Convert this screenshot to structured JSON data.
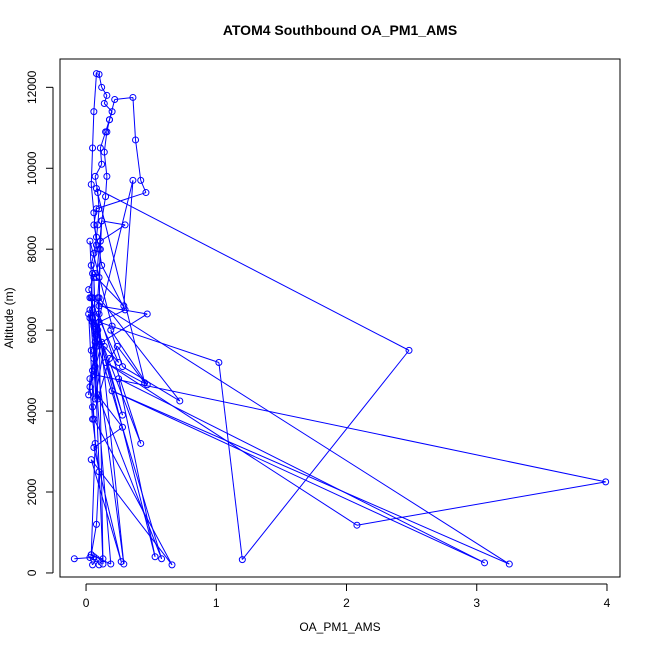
{
  "chart_data": {
    "type": "line",
    "title": "ATOM4 Southbound OA_PM1_AMS",
    "xlabel": "OA_PM1_AMS",
    "ylabel": "Altitude (m)",
    "xlim": [
      -0.2,
      4.1
    ],
    "ylim": [
      -100,
      12700
    ],
    "xticks": [
      {
        "value": 0,
        "label": "0"
      },
      {
        "value": 1,
        "label": "1"
      },
      {
        "value": 2,
        "label": "2"
      },
      {
        "value": 3,
        "label": "3"
      },
      {
        "value": 4,
        "label": "4"
      }
    ],
    "yticks": [
      {
        "value": 0,
        "label": "0"
      },
      {
        "value": 2000,
        "label": "2000"
      },
      {
        "value": 4000,
        "label": "4000"
      },
      {
        "value": 6000,
        "label": "6000"
      },
      {
        "value": 8000,
        "label": "8000"
      },
      {
        "value": 10000,
        "label": "10000"
      },
      {
        "value": 12000,
        "label": "12000"
      }
    ],
    "grid": false,
    "line_color": "#0000ff",
    "marker": "open-circle",
    "series": [
      {
        "x": [
          -0.09,
          0.03,
          0.05,
          0.08,
          0.1,
          0.13,
          0.06,
          0.04,
          0.08,
          0.1,
          0.05,
          0.03,
          0.07,
          0.04,
          0.09,
          0.06,
          0.03,
          0.05,
          0.02,
          0.07,
          0.04,
          0.06,
          0.08,
          0.09,
          0.1,
          0.09,
          0.07,
          0.12,
          0.11,
          0.15,
          0.18,
          0.2,
          0.14,
          0.16,
          0.12,
          0.1,
          0.08,
          0.06,
          0.05,
          0.04,
          0.06,
          0.08,
          0.05,
          0.04,
          0.05,
          0.07,
          0.06,
          0.03,
          0.02,
          0.05,
          0.08,
          0.1,
          0.09,
          0.1,
          0.11,
          0.12,
          0.15,
          0.16,
          0.14,
          0.16,
          0.18,
          0.22,
          0.36,
          0.38,
          0.42,
          0.46,
          0.08,
          0.06,
          0.1,
          0.12,
          0.3,
          0.1,
          1.02,
          1.2,
          2.48,
          0.08,
          0.45,
          0.24,
          0.18,
          0.09,
          0.06,
          0.07,
          0.36,
          0.29,
          0.08,
          0.12,
          0.3,
          0.11,
          0.1,
          0.42,
          0.05,
          0.28,
          0.05,
          0.53,
          0.25,
          3.06,
          0.2,
          3.25,
          0.03,
          0.25,
          0.14,
          0.07,
          0.1,
          0.72,
          0.28,
          0.19,
          0.47,
          0.15,
          2.08,
          3.99,
          0.06,
          0.12,
          0.47,
          0.1,
          0.05,
          0.06,
          0.66,
          0.04,
          0.27,
          0.06,
          0.28,
          0.09,
          0.58,
          0.02,
          0.07,
          0.04,
          0.19,
          0.03,
          0.29,
          0.1,
          0.13,
          0.03,
          0.2
        ],
        "y": [
          350,
          380,
          200,
          350,
          200,
          350,
          400,
          450,
          1200,
          2500,
          3800,
          4600,
          5100,
          5500,
          6000,
          6100,
          6300,
          6800,
          7000,
          7400,
          7600,
          7900,
          8300,
          8600,
          9000,
          9400,
          9800,
          10100,
          10500,
          10900,
          11200,
          11400,
          11600,
          11800,
          12000,
          12320,
          12340,
          11400,
          10500,
          9600,
          8900,
          8100,
          7400,
          6800,
          6200,
          5700,
          5300,
          4800,
          4400,
          5000,
          5600,
          6200,
          6800,
          7300,
          8000,
          8700,
          9300,
          9800,
          10400,
          10900,
          11200,
          11700,
          11750,
          10700,
          9700,
          9400,
          9000,
          8600,
          8000,
          7600,
          6500,
          6200,
          5200,
          330,
          5500,
          9500,
          4700,
          5600,
          5300,
          4300,
          7300,
          5900,
          9700,
          6600,
          7300,
          8700,
          8600,
          8200,
          6400,
          3200,
          6300,
          3900,
          6500,
          400,
          4800,
          250,
          4500,
          220,
          6800,
          5200,
          5600,
          4300,
          6800,
          4250,
          5100,
          6000,
          4650,
          5200,
          1180,
          2250,
          4900,
          5700,
          6400,
          6600,
          4100,
          3800,
          200,
          2800,
          280,
          3100,
          3600,
          4400,
          350,
          6400,
          3200,
          450,
          220,
          6500,
          220,
          6200,
          220,
          8200,
          6100
        ]
      }
    ]
  }
}
